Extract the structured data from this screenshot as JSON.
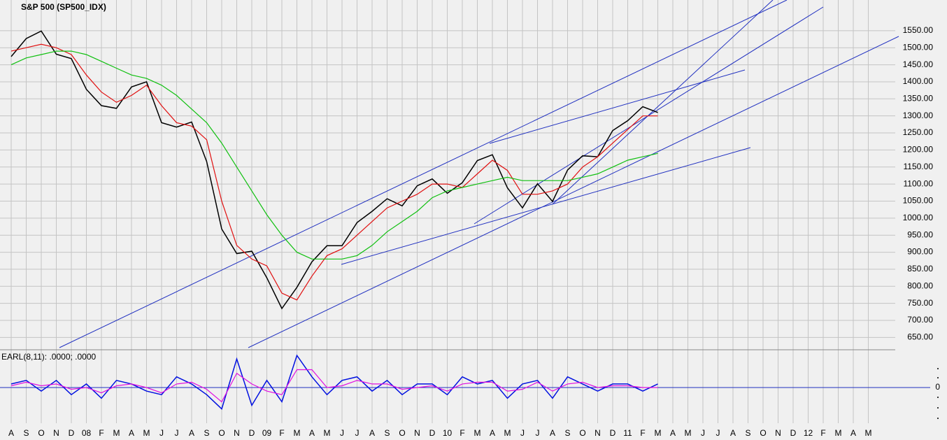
{
  "chart_data": [
    {
      "type": "line",
      "title": "S&P 500 (SP500_IDX)",
      "categories": [
        "A",
        "S",
        "O",
        "N",
        "D",
        "08",
        "F",
        "M",
        "A",
        "M",
        "J",
        "J",
        "A",
        "S",
        "O",
        "N",
        "D",
        "09",
        "F",
        "M",
        "A",
        "M",
        "J",
        "J",
        "A",
        "S",
        "O",
        "N",
        "D",
        "10",
        "F",
        "M",
        "A",
        "M",
        "J",
        "J",
        "A",
        "S",
        "O",
        "N",
        "D",
        "11",
        "F",
        "M",
        "A",
        "M",
        "J",
        "J",
        "A",
        "S",
        "O",
        "N",
        "D",
        "12",
        "F",
        "M",
        "A",
        "M"
      ],
      "series": [
        {
          "color": "#000000",
          "values": [
            1474,
            1527,
            1549,
            1481,
            1468,
            1378,
            1330,
            1322,
            1385,
            1400,
            1280,
            1267,
            1282,
            1166,
            968,
            896,
            903,
            825,
            735,
            797,
            872,
            919,
            919,
            987,
            1020,
            1057,
            1036,
            1095,
            1115,
            1073,
            1104,
            1169,
            1186,
            1089,
            1030,
            1101,
            1049,
            1141,
            1183,
            1180,
            1257,
            1286,
            1327,
            1310,
            null,
            null,
            null,
            null,
            null,
            null,
            null,
            null,
            null,
            null,
            null,
            null,
            null,
            null
          ]
        },
        {
          "color": "#e01010",
          "values": [
            1490,
            1500,
            1510,
            1500,
            1480,
            1420,
            1370,
            1340,
            1360,
            1390,
            1330,
            1280,
            1270,
            1230,
            1050,
            920,
            880,
            860,
            780,
            760,
            830,
            890,
            910,
            950,
            990,
            1030,
            1050,
            1070,
            1100,
            1100,
            1090,
            1130,
            1170,
            1140,
            1070,
            1070,
            1080,
            1100,
            1150,
            1180,
            1220,
            1260,
            1300,
            1300,
            null,
            null,
            null,
            null,
            null,
            null,
            null,
            null,
            null,
            null,
            null,
            null,
            null,
            null
          ]
        },
        {
          "color": "#10c010",
          "values": [
            1450,
            1470,
            1480,
            1490,
            1490,
            1480,
            1460,
            1440,
            1420,
            1410,
            1390,
            1360,
            1320,
            1280,
            1220,
            1150,
            1080,
            1010,
            950,
            900,
            880,
            880,
            880,
            890,
            920,
            960,
            990,
            1020,
            1060,
            1080,
            1090,
            1100,
            1110,
            1120,
            1110,
            1110,
            1110,
            1110,
            1120,
            1130,
            1150,
            1170,
            1180,
            1190,
            null,
            null,
            null,
            null,
            null,
            null,
            null,
            null,
            null,
            null,
            null,
            null,
            null,
            null
          ]
        }
      ],
      "ylim": [
        620,
        1640
      ],
      "yticks": [
        {
          "value": 650,
          "label": "650.00"
        },
        {
          "value": 700,
          "label": "700.00"
        },
        {
          "value": 750,
          "label": "750.00"
        },
        {
          "value": 800,
          "label": "800.00"
        },
        {
          "value": 850,
          "label": "850.00"
        },
        {
          "value": 900,
          "label": "900.00"
        },
        {
          "value": 950,
          "label": "950.00"
        },
        {
          "value": 1000,
          "label": "1000.00"
        },
        {
          "value": 1050,
          "label": "1050.00"
        },
        {
          "value": 1100,
          "label": "1100.00"
        },
        {
          "value": 1150,
          "label": "1150.00"
        },
        {
          "value": 1200,
          "label": "1200.00"
        },
        {
          "value": 1250,
          "label": "1250.00"
        },
        {
          "value": 1300,
          "label": "1300.00"
        },
        {
          "value": 1350,
          "label": "1350.00"
        },
        {
          "value": 1400,
          "label": "1400.00"
        },
        {
          "value": 1450,
          "label": "1450.00"
        },
        {
          "value": 1500,
          "label": "1500.00"
        },
        {
          "value": 1550,
          "label": "1550.00"
        }
      ],
      "grid": true
    },
    {
      "type": "line",
      "title": "EARL(8,11): .0000; .0000",
      "series": [
        {
          "color": "#0010e0",
          "values": [
            0.1,
            0.2,
            -0.1,
            0.2,
            -0.2,
            0.1,
            -0.3,
            0.2,
            0.1,
            -0.1,
            -0.2,
            0.3,
            0.1,
            -0.2,
            -0.6,
            0.8,
            -0.5,
            0.2,
            -0.4,
            0.9,
            0.3,
            -0.2,
            0.2,
            0.3,
            -0.1,
            0.2,
            -0.2,
            0.1,
            0.1,
            -0.2,
            0.3,
            0.1,
            0.2,
            -0.3,
            0.1,
            0.2,
            -0.3,
            0.3,
            0.1,
            -0.1,
            0.1,
            0.1,
            -0.1,
            0.1,
            null,
            null,
            null,
            null,
            null,
            null,
            null,
            null,
            null,
            null,
            null,
            null,
            null,
            null
          ]
        },
        {
          "color": "#e010e0",
          "values": [
            0.05,
            0.15,
            0.05,
            0.1,
            -0.05,
            0,
            -0.15,
            0.05,
            0.1,
            0,
            -0.15,
            0.1,
            0.15,
            -0.05,
            -0.4,
            0.4,
            0.1,
            -0.1,
            -0.2,
            0.5,
            0.5,
            0,
            0.05,
            0.2,
            0.1,
            0.1,
            -0.05,
            0,
            0.05,
            -0.1,
            0.1,
            0.15,
            0.15,
            -0.1,
            -0.05,
            0.15,
            -0.1,
            0.1,
            0.15,
            0,
            0.05,
            0.05,
            0,
            0,
            null,
            null,
            null,
            null,
            null,
            null,
            null,
            null,
            null,
            null,
            null,
            null,
            null,
            null
          ]
        }
      ],
      "ylim": [
        -1,
        1
      ],
      "yticks": [
        0
      ]
    }
  ]
}
